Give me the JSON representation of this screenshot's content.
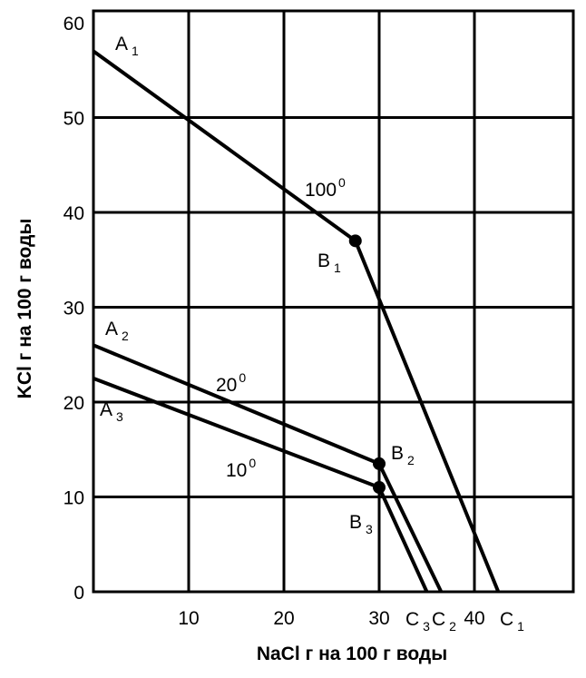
{
  "chart_data": {
    "type": "line",
    "xlabel": "NaCl г на 100 г воды",
    "ylabel": "KCl г на 100 г воды",
    "xlim": [
      0,
      50
    ],
    "ylim": [
      0,
      60
    ],
    "x_ticks": [
      "10",
      "20",
      "30",
      "40"
    ],
    "y_ticks": [
      "0",
      "10",
      "20",
      "30",
      "40",
      "50",
      "60"
    ],
    "grid": true,
    "series": [
      {
        "name": "100",
        "name_sup": "0",
        "points": [
          [
            0,
            57
          ],
          [
            27.5,
            37
          ],
          [
            42.5,
            0
          ]
        ],
        "labels": [
          {
            "main": "A",
            "sub": "1"
          },
          {
            "main": "B",
            "sub": "1"
          },
          {
            "main": "C",
            "sub": "1"
          }
        ]
      },
      {
        "name": "20",
        "name_sup": "0",
        "points": [
          [
            0,
            26
          ],
          [
            30,
            13.5
          ],
          [
            36.5,
            0
          ]
        ],
        "labels": [
          {
            "main": "A",
            "sub": "2"
          },
          {
            "main": "B",
            "sub": "2"
          },
          {
            "main": "C",
            "sub": "2"
          }
        ]
      },
      {
        "name": "10",
        "name_sup": "0",
        "points": [
          [
            0,
            22.5
          ],
          [
            30,
            11
          ],
          [
            35,
            0
          ]
        ],
        "labels": [
          {
            "main": "A",
            "sub": "3"
          },
          {
            "main": "B",
            "sub": "3"
          },
          {
            "main": "C",
            "sub": "3"
          }
        ]
      }
    ]
  }
}
